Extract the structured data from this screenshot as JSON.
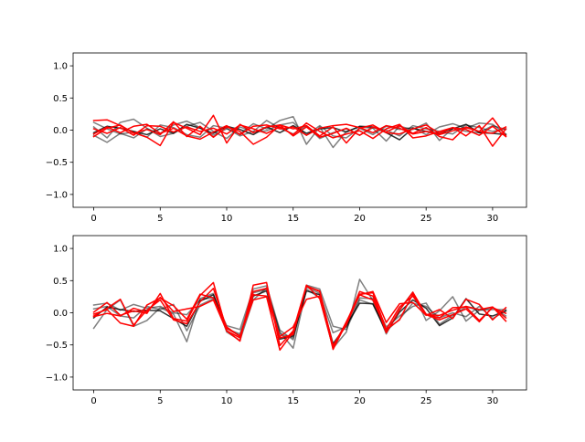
{
  "chart_data": [
    {
      "type": "line",
      "title": "",
      "xlabel": "",
      "ylabel": "",
      "xlim": [
        -1.55,
        32.55
      ],
      "ylim": [
        -1.2,
        1.2
      ],
      "xticks": [
        0,
        5,
        10,
        15,
        20,
        25,
        30
      ],
      "yticks": [
        -1.0,
        -0.5,
        0.0,
        0.5,
        1.0
      ],
      "ytick_labels": [
        "−1.0",
        "−0.5",
        "0.0",
        "0.5",
        "1.0"
      ],
      "grid": false,
      "x": [
        0,
        1,
        2,
        3,
        4,
        5,
        6,
        7,
        8,
        9,
        10,
        11,
        12,
        13,
        14,
        15,
        16,
        17,
        18,
        19,
        20,
        21,
        22,
        23,
        24,
        25,
        26,
        27,
        28,
        29,
        30,
        31
      ],
      "series": [
        {
          "color": "#000000",
          "opacity": 0.5,
          "values": [
            -0.08,
            -0.19,
            -0.05,
            -0.12,
            0.02,
            -0.05,
            0.08,
            0.14,
            0.04,
            -0.08,
            0.02,
            -0.06,
            0.1,
            0.02,
            0.15,
            0.21,
            -0.22,
            0.05,
            -0.27,
            -0.02,
            0.05,
            0.03,
            -0.17,
            0.06,
            0.01,
            0.11,
            -0.16,
            0.03,
            -0.02,
            -0.04,
            0.07,
            0.01
          ]
        },
        {
          "color": "#000000",
          "opacity": 0.5,
          "values": [
            0.05,
            -0.12,
            0.12,
            0.17,
            0.03,
            -0.1,
            -0.05,
            0.06,
            0.12,
            -0.02,
            -0.13,
            0.05,
            -0.03,
            -0.01,
            0.08,
            0.12,
            -0.08,
            0.07,
            -0.09,
            -0.12,
            0.03,
            -0.07,
            0.06,
            0.01,
            0.04,
            -0.07,
            0.05,
            0.1,
            0.03,
            0.11,
            0.09,
            -0.06
          ]
        },
        {
          "color": "#000000",
          "opacity": 0.5,
          "values": [
            0.12,
            0.02,
            -0.06,
            -0.03,
            -0.11,
            0.08,
            0.04,
            -0.07,
            -0.11,
            0.07,
            0.03,
            -0.09,
            -0.02,
            0.15,
            0.03,
            -0.06,
            0.07,
            -0.13,
            -0.04,
            0.02,
            -0.08,
            0.04,
            0.0,
            -0.09,
            0.07,
            0.02,
            -0.02,
            -0.06,
            0.08,
            0.04,
            -0.02,
            0.02
          ]
        },
        {
          "color": "#000000",
          "opacity": 0.8,
          "values": [
            -0.04,
            0.06,
            0.03,
            -0.02,
            -0.07,
            0.02,
            -0.05,
            0.09,
            0.03,
            -0.05,
            0.06,
            0.01,
            -0.07,
            0.05,
            -0.04,
            0.07,
            -0.05,
            0.02,
            0.04,
            -0.03,
            0.06,
            0.05,
            -0.04,
            -0.15,
            0.03,
            -0.02,
            -0.05,
            0.02,
            0.09,
            -0.04,
            -0.05,
            -0.07
          ]
        },
        {
          "color": "#ff0000",
          "opacity": 1.0,
          "values": [
            0.15,
            0.16,
            0.07,
            -0.04,
            -0.11,
            -0.24,
            0.12,
            0.03,
            -0.07,
            0.23,
            -0.2,
            0.09,
            -0.04,
            0.05,
            0.08,
            -0.09,
            0.05,
            -0.11,
            -0.05,
            0.03,
            -0.08,
            0.05,
            -0.03,
            0.07,
            -0.05,
            0.04,
            -0.1,
            -0.15,
            0.05,
            -0.02,
            0.19,
            -0.09
          ]
        },
        {
          "color": "#ff0000",
          "opacity": 1.0,
          "values": [
            -0.06,
            0.05,
            -0.04,
            0.06,
            0.09,
            -0.05,
            0.03,
            -0.09,
            -0.14,
            -0.03,
            0.07,
            -0.07,
            0.06,
            0.08,
            0.02,
            0.05,
            -0.08,
            0.03,
            0.07,
            0.09,
            0.04,
            -0.04,
            0.07,
            0.03,
            -0.06,
            -0.02,
            -0.07,
            -0.01,
            0.04,
            -0.02,
            -0.05,
            0.05
          ]
        },
        {
          "color": "#ff0000",
          "opacity": 1.0,
          "values": [
            -0.1,
            0.03,
            0.08,
            -0.05,
            0.01,
            -0.07,
            0.13,
            -0.1,
            0.06,
            -0.11,
            0.05,
            -0.02,
            -0.22,
            -0.11,
            0.08,
            0.02,
            0.07,
            -0.09,
            0.05,
            -0.2,
            0.03,
            0.08,
            -0.04,
            -0.06,
            0.02,
            0.08,
            -0.05,
            0.04,
            -0.09,
            0.07,
            -0.25,
            0.02
          ]
        },
        {
          "color": "#ff0000",
          "opacity": 1.0,
          "values": [
            0.02,
            -0.05,
            0.04,
            -0.08,
            0.07,
            0.06,
            -0.03,
            0.05,
            -0.02,
            0.03,
            -0.06,
            0.08,
            0.02,
            -0.05,
            0.05,
            -0.07,
            0.11,
            -0.02,
            -0.12,
            -0.06,
            -0.01,
            -0.13,
            0.02,
            0.09,
            -0.12,
            -0.09,
            -0.02,
            0.04,
            0.01,
            -0.08,
            0.06,
            -0.1
          ]
        }
      ]
    },
    {
      "type": "line",
      "title": "",
      "xlabel": "",
      "ylabel": "",
      "xlim": [
        -1.55,
        32.55
      ],
      "ylim": [
        -1.2,
        1.2
      ],
      "xticks": [
        0,
        5,
        10,
        15,
        20,
        25,
        30
      ],
      "yticks": [
        -1.0,
        -0.5,
        0.0,
        0.5,
        1.0
      ],
      "ytick_labels": [
        "−1.0",
        "−0.5",
        "0.0",
        "0.5",
        "1.0"
      ],
      "grid": false,
      "x": [
        0,
        1,
        2,
        3,
        4,
        5,
        6,
        7,
        8,
        9,
        10,
        11,
        12,
        13,
        14,
        15,
        16,
        17,
        18,
        19,
        20,
        21,
        22,
        23,
        24,
        25,
        26,
        27,
        28,
        29,
        30,
        31
      ],
      "series": [
        {
          "color": "#000000",
          "opacity": 0.5,
          "values": [
            -0.24,
            0.05,
            0.2,
            -0.21,
            -0.12,
            0.08,
            -0.02,
            -0.45,
            0.22,
            0.3,
            -0.3,
            -0.43,
            0.2,
            0.39,
            -0.3,
            -0.55,
            0.37,
            0.23,
            -0.55,
            -0.3,
            0.52,
            0.19,
            -0.33,
            0.05,
            0.32,
            -0.12,
            0.03,
            0.25,
            -0.13,
            0.04,
            0.05,
            0.05
          ]
        },
        {
          "color": "#000000",
          "opacity": 0.5,
          "values": [
            0.12,
            0.15,
            0.04,
            0.13,
            0.07,
            0.1,
            0.0,
            -0.03,
            0.2,
            0.24,
            -0.2,
            -0.26,
            0.37,
            0.42,
            -0.27,
            -0.42,
            0.4,
            0.3,
            -0.31,
            -0.22,
            0.23,
            0.22,
            -0.22,
            -0.05,
            0.1,
            0.15,
            -0.18,
            -0.04,
            0.09,
            0.04,
            0.08,
            -0.05
          ]
        },
        {
          "color": "#000000",
          "opacity": 0.5,
          "values": [
            0.06,
            0.1,
            -0.05,
            -0.08,
            0.1,
            0.05,
            0.13,
            -0.28,
            0.12,
            0.22,
            -0.25,
            -0.33,
            0.31,
            0.36,
            -0.33,
            -0.39,
            0.43,
            0.37,
            -0.21,
            -0.26,
            0.2,
            0.13,
            -0.28,
            -0.1,
            0.15,
            0.1,
            -0.08,
            0.0,
            -0.06,
            0.1,
            -0.09,
            0.03
          ]
        },
        {
          "color": "#000000",
          "opacity": 0.8,
          "values": [
            -0.08,
            0.09,
            0.05,
            0.02,
            0.04,
            0.03,
            -0.09,
            -0.21,
            0.18,
            0.28,
            -0.24,
            -0.36,
            0.26,
            0.34,
            -0.41,
            -0.36,
            0.34,
            0.28,
            -0.48,
            -0.2,
            0.15,
            0.14,
            -0.3,
            0.01,
            0.2,
            0.07,
            -0.2,
            -0.08,
            0.22,
            -0.02,
            -0.05,
            0.03
          ]
        },
        {
          "color": "#ff0000",
          "opacity": 1.0,
          "values": [
            0.01,
            0.16,
            -0.04,
            0.03,
            -0.01,
            0.3,
            -0.09,
            -0.13,
            0.27,
            0.47,
            -0.28,
            -0.44,
            0.43,
            0.47,
            -0.51,
            -0.28,
            0.43,
            0.22,
            -0.54,
            -0.14,
            0.28,
            0.2,
            -0.26,
            0.09,
            0.26,
            -0.03,
            -0.11,
            -0.03,
            0.06,
            -0.14,
            0.09,
            -0.13
          ]
        },
        {
          "color": "#ff0000",
          "opacity": 1.0,
          "values": [
            -0.05,
            0.07,
            0.21,
            -0.19,
            0.04,
            0.2,
            -0.11,
            -0.17,
            0.17,
            0.38,
            -0.24,
            -0.36,
            0.2,
            0.25,
            -0.58,
            -0.3,
            0.41,
            0.34,
            -0.51,
            -0.19,
            0.29,
            0.31,
            -0.26,
            -0.11,
            0.29,
            -0.02,
            -0.08,
            0.08,
            0.09,
            -0.12,
            0.08,
            -0.01
          ]
        },
        {
          "color": "#ff0000",
          "opacity": 1.0,
          "values": [
            -0.06,
            -0.01,
            -0.05,
            0.07,
            0.01,
            0.24,
            0.02,
            0.06,
            0.1,
            0.2,
            -0.28,
            -0.39,
            0.33,
            0.38,
            -0.39,
            -0.34,
            0.42,
            0.33,
            -0.57,
            -0.16,
            0.33,
            0.26,
            -0.31,
            0.04,
            0.32,
            -0.03,
            -0.04,
            0.04,
            0.1,
            0.05,
            0.09,
            -0.08
          ]
        },
        {
          "color": "#ff0000",
          "opacity": 1.0,
          "values": [
            -0.02,
            0.05,
            -0.16,
            -0.21,
            0.12,
            0.23,
            0.11,
            -0.1,
            0.29,
            0.23,
            -0.22,
            -0.37,
            0.28,
            0.26,
            -0.37,
            -0.22,
            0.21,
            0.26,
            -0.52,
            -0.15,
            0.28,
            0.33,
            -0.15,
            0.14,
            0.16,
            -0.04,
            0.05,
            -0.09,
            0.21,
            0.13,
            -0.11,
            0.08
          ]
        }
      ]
    }
  ]
}
